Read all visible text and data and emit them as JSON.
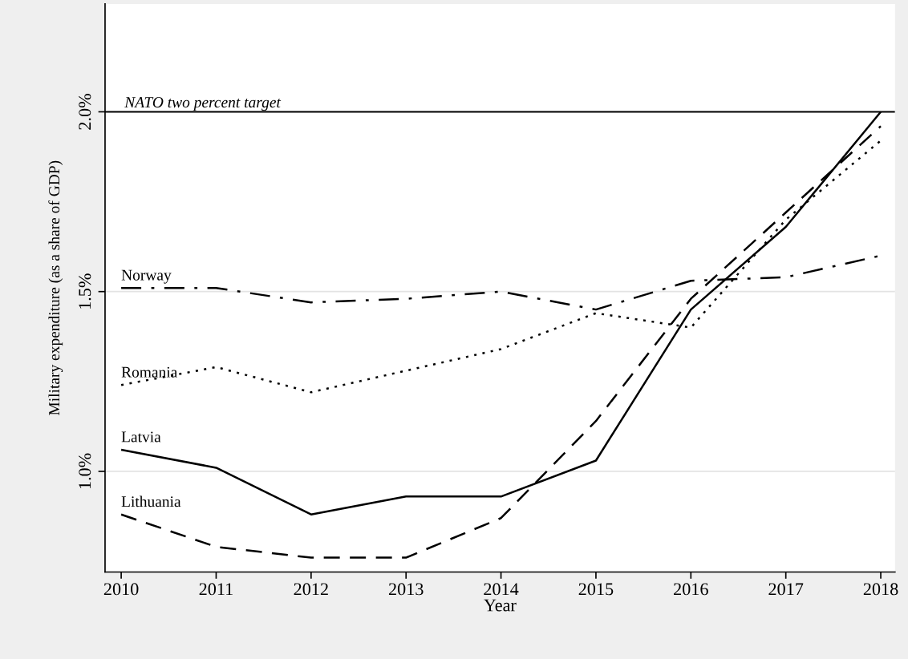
{
  "chart_data": {
    "type": "line",
    "xlabel": "Year",
    "ylabel": "Military expenditure (as a share of GDP)",
    "x": [
      2010,
      2011,
      2012,
      2013,
      2014,
      2015,
      2016,
      2017,
      2018
    ],
    "series": [
      {
        "name": "Norway",
        "color": "#000000",
        "line_style": "dashdot",
        "values": [
          1.51,
          1.51,
          1.47,
          1.48,
          1.5,
          1.45,
          1.53,
          1.54,
          1.6
        ]
      },
      {
        "name": "Romania",
        "color": "#000000",
        "line_style": "dotted",
        "values": [
          1.24,
          1.29,
          1.22,
          1.28,
          1.34,
          1.44,
          1.4,
          1.7,
          1.92
        ]
      },
      {
        "name": "Latvia",
        "color": "#000000",
        "line_style": "solid",
        "values": [
          1.06,
          1.01,
          0.88,
          0.93,
          0.93,
          1.03,
          1.45,
          1.68,
          2.0
        ]
      },
      {
        "name": "Lithuania",
        "color": "#000000",
        "line_style": "dashed",
        "values": [
          0.88,
          0.79,
          0.76,
          0.76,
          0.87,
          1.14,
          1.48,
          1.72,
          1.96
        ]
      }
    ],
    "xlim": [
      2009.83,
      2018.15
    ],
    "ylim": [
      0.72,
      2.3
    ],
    "xticks": [
      2010,
      2011,
      2012,
      2013,
      2014,
      2015,
      2016,
      2017,
      2018
    ],
    "yticks": [
      {
        "value": 1.0,
        "label": "1.0%"
      },
      {
        "value": 1.5,
        "label": "1.5%"
      },
      {
        "value": 2.0,
        "label": "2.0%"
      }
    ],
    "grid": "y",
    "legend": false,
    "marker": "none",
    "ref_lines": [
      {
        "axis": "y",
        "value": 2.0,
        "label": "NATO two percent target",
        "color": "#000000",
        "line_style": "solid"
      }
    ]
  }
}
